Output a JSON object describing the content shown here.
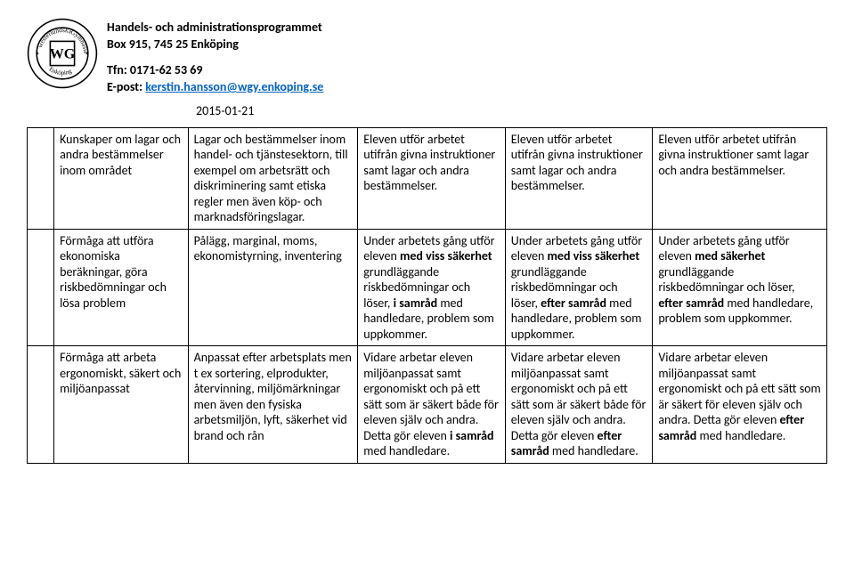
{
  "header": {
    "line1": "Handels- och administrationsprogrammet",
    "line2": "Box 915, 745 25 Enköping",
    "tfn": "Tfn: 0171-62 53 69",
    "epost_label": "E-post: ",
    "epost_link": "kerstin.hansson@wgy.enkoping.se",
    "date": "2015-01-21"
  },
  "logo": {
    "outer_text_top": "westerlundska",
    "outer_text_right": "Gymnasiet",
    "outer_text_bottom": "Enköping",
    "monogram": "WG"
  },
  "rows": [
    {
      "c1": "Kunskaper om lagar och andra bestämmelser inom området",
      "c2": "Lagar och bestämmelser inom handel- och tjänstesektorn, till exempel om arbetsrätt och diskriminering samt etiska regler men även köp- och marknadsföringslagar.",
      "c3": "Eleven utför arbetet utifrån givna instruktioner samt lagar och andra bestämmelser.",
      "c4": "Eleven utför arbetet utifrån givna instruktioner samt lagar och andra bestämmelser.",
      "c5": "Eleven utför arbetet utifrån givna instruktioner samt lagar och andra bestämmelser."
    },
    {
      "c1": "Förmåga att utföra ekonomiska beräkningar, göra riskbedömningar och lösa problem",
      "c2": "Pålägg, marginal, moms, ekonomistyrning, inventering",
      "c3_html": "Under arbetets gång utför eleven <b>med viss säkerhet</b> grundläggande riskbedömningar och löser, <b>i samråd</b> med handledare, problem som uppkommer.",
      "c4_html": "Under arbetets gång utför eleven <b>med viss säkerhet</b> grundläggande riskbedömningar och löser, <b>efter samråd</b> med handledare, problem som uppkommer.",
      "c5_html": "Under arbetets gång utför eleven <b>med säkerhet</b> grundläggande riskbedömningar och löser, <b>efter samråd</b> med handledare, problem som uppkommer."
    },
    {
      "c1": "Förmåga att arbeta ergonomiskt, säkert och miljöanpassat",
      "c2": "Anpassat efter arbetsplats men t ex sortering, elprodukter, återvinning, miljömärkningar men även den fysiska arbetsmiljön, lyft, säkerhet vid brand och rån",
      "c3_html": "Vidare arbetar eleven miljöanpassat samt ergonomiskt och på ett sätt som är säkert både för eleven själv och andra. Detta gör eleven <b>i samråd</b> med handledare.",
      "c4_html": "Vidare arbetar eleven miljöanpassat samt ergonomiskt och på ett sätt som är säkert både för eleven själv och andra. Detta gör eleven <b>efter samråd</b> med handledare.",
      "c5_html": "Vidare arbetar eleven miljöanpassat samt ergonomiskt och på ett sätt som är säkert för eleven själv och andra. Detta gör eleven <b>efter samråd</b> med handledare."
    }
  ]
}
